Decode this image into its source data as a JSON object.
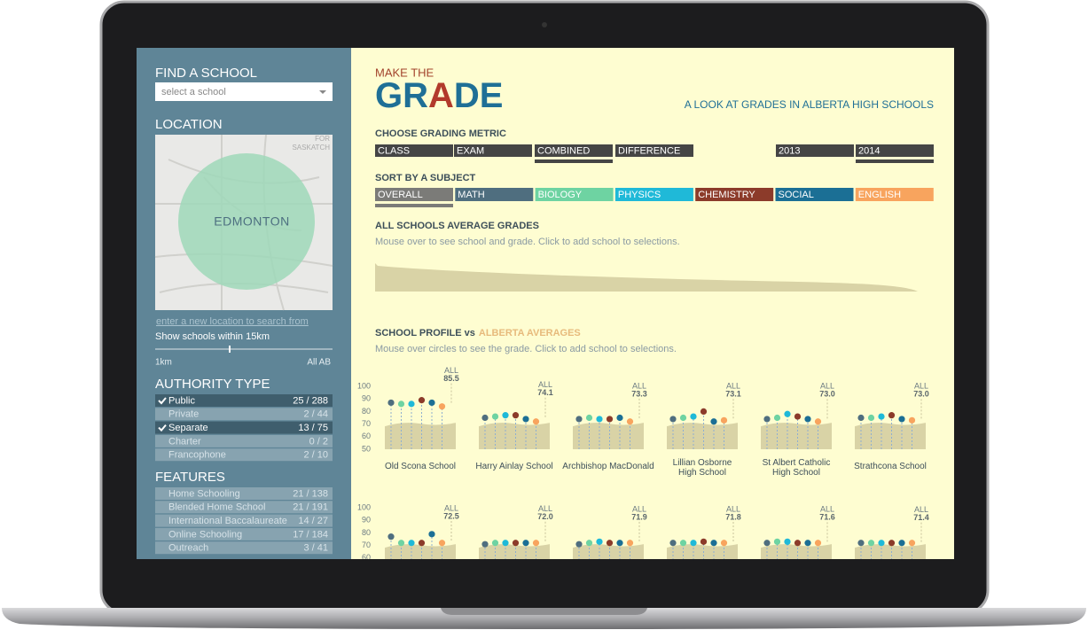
{
  "sidebar": {
    "find_title": "FIND A SCHOOL",
    "select_placeholder": "select a school",
    "location_title": "LOCATION",
    "map_city": "EDMONTON",
    "map_labels": [
      "FOR",
      "SASKATCH"
    ],
    "location_link": "enter a new location to search from",
    "radius_text": "Show schools within 15km",
    "slider_min": "1km",
    "slider_max": "All AB",
    "authority_title": "AUTHORITY TYPE",
    "authority": [
      {
        "label": "Public",
        "count": "25 / 288",
        "selected": true
      },
      {
        "label": "Private",
        "count": "2 / 44",
        "selected": false
      },
      {
        "label": "Separate",
        "count": "13 / 75",
        "selected": true
      },
      {
        "label": "Charter",
        "count": "0 / 2",
        "selected": false
      },
      {
        "label": "Francophone",
        "count": "2 / 10",
        "selected": false
      }
    ],
    "features_title": "FEATURES",
    "features": [
      {
        "label": "Home Schooling",
        "count": "21 / 138"
      },
      {
        "label": "Blended Home School",
        "count": "21 / 191"
      },
      {
        "label": "International Baccalaureate",
        "count": "14 / 27"
      },
      {
        "label": "Online Schooling",
        "count": "17 / 184"
      },
      {
        "label": "Outreach",
        "count": "3 / 41"
      }
    ]
  },
  "header": {
    "kicker": "MAKE THE",
    "title_parts": [
      "GR",
      "A",
      "DE"
    ],
    "subtitle": "A LOOK AT GRADES IN ALBERTA HIGH SCHOOLS"
  },
  "metric": {
    "title": "CHOOSE GRADING METRIC",
    "buttons": [
      "CLASS",
      "EXAM",
      "COMBINED",
      "DIFFERENCE"
    ],
    "selected": "COMBINED",
    "years": [
      "2013",
      "2014"
    ],
    "selected_year": "2014"
  },
  "subjects": {
    "title": "SORT BY A SUBJECT",
    "buttons": [
      {
        "label": "OVERALL",
        "color": "#7b7b78"
      },
      {
        "label": "MATH",
        "color": "#4f6e7f"
      },
      {
        "label": "BIOLOGY",
        "color": "#6ed3a2"
      },
      {
        "label": "PHYSICS",
        "color": "#1fb9d8"
      },
      {
        "label": "CHEMISTRY",
        "color": "#8c3b2a"
      },
      {
        "label": "SOCIAL",
        "color": "#1b6f95"
      },
      {
        "label": "ENGLISH",
        "color": "#f8a45e"
      }
    ],
    "selected": "OVERALL"
  },
  "average": {
    "title": "ALL SCHOOLS AVERAGE GRADES",
    "hint": "Mouse over to see school and grade. Click to add school to selections."
  },
  "profile": {
    "title": "SCHOOL PROFILE vs",
    "highlight": "ALBERTA AVERAGES",
    "hint": "Mouse over circles to see the grade. Click to add school to selections.",
    "ylim": [
      50,
      100
    ],
    "yticks": [
      100,
      90,
      80,
      70,
      60,
      50
    ],
    "all_label": "ALL",
    "schools": [
      {
        "name": "Old Scona School",
        "all": 85.5,
        "values": [
          87,
          86,
          86,
          89,
          87,
          84
        ]
      },
      {
        "name": "Harry Ainlay School",
        "all": 74.1,
        "values": [
          75,
          76,
          77,
          77,
          74,
          72
        ]
      },
      {
        "name": "Archbishop MacDonald",
        "all": 73.3,
        "values": [
          74,
          75,
          74,
          74,
          75,
          72
        ]
      },
      {
        "name": "Lillian Osborne High School",
        "all": 73.1,
        "values": [
          74,
          75,
          76,
          80,
          72,
          73
        ]
      },
      {
        "name": "St Albert Catholic High School",
        "all": 73.0,
        "values": [
          74,
          75,
          78,
          76,
          74,
          72
        ]
      },
      {
        "name": "Strathcona School",
        "all": 73.0,
        "values": [
          75,
          75,
          76,
          77,
          74,
          73
        ]
      },
      {
        "all": 72.5,
        "values": [
          77,
          72,
          72,
          72,
          79,
          72
        ]
      },
      {
        "all": 72.0,
        "values": [
          71,
          72,
          72,
          72,
          72,
          72
        ]
      },
      {
        "all": 71.9,
        "values": [
          71,
          72,
          73,
          72,
          72,
          72
        ]
      },
      {
        "all": 71.8,
        "values": [
          72,
          72,
          72,
          73,
          72,
          72
        ]
      },
      {
        "all": 71.6,
        "values": [
          72,
          73,
          73,
          72,
          72,
          72
        ]
      },
      {
        "all": 71.4,
        "values": [
          72,
          72,
          72,
          72,
          72,
          72
        ]
      }
    ]
  }
}
